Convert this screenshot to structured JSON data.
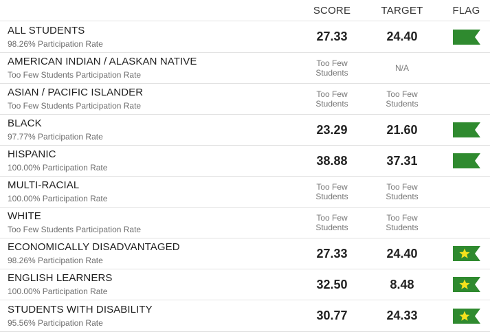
{
  "headers": {
    "score": "SCORE",
    "target": "TARGET",
    "flag": "FLAG"
  },
  "colors": {
    "flag_green": "#2f8a2f",
    "star_yellow": "#f5e11c"
  },
  "rows": [
    {
      "group": "ALL STUDENTS",
      "rate": "98.26% Participation Rate",
      "score": "27.33",
      "target": "24.40",
      "flag": "flag-icon"
    },
    {
      "group": "AMERICAN INDIAN / ALASKAN NATIVE",
      "rate": "Too Few Students Participation Rate",
      "score_line1": "Too Few",
      "score_line2": "Students",
      "target": "N/A"
    },
    {
      "group": "ASIAN / PACIFIC ISLANDER",
      "rate": "Too Few Students Participation Rate",
      "score_line1": "Too Few",
      "score_line2": "Students",
      "target_line1": "Too Few",
      "target_line2": "Students"
    },
    {
      "group": "BLACK",
      "rate": "97.77% Participation Rate",
      "score": "23.29",
      "target": "21.60",
      "flag": "flag-icon"
    },
    {
      "group": "HISPANIC",
      "rate": "100.00% Participation Rate",
      "score": "38.88",
      "target": "37.31",
      "flag": "flag-icon"
    },
    {
      "group": "MULTI-RACIAL",
      "rate": "100.00% Participation Rate",
      "score_line1": "Too Few",
      "score_line2": "Students",
      "target_line1": "Too Few",
      "target_line2": "Students"
    },
    {
      "group": "WHITE",
      "rate": "Too Few Students Participation Rate",
      "score_line1": "Too Few",
      "score_line2": "Students",
      "target_line1": "Too Few",
      "target_line2": "Students"
    },
    {
      "group": "ECONOMICALLY DISADVANTAGED",
      "rate": "98.26% Participation Rate",
      "score": "27.33",
      "target": "24.40",
      "flag": "star-flag-icon"
    },
    {
      "group": "ENGLISH LEARNERS",
      "rate": "100.00% Participation Rate",
      "score": "32.50",
      "target": "8.48",
      "flag": "star-flag-icon"
    },
    {
      "group": "STUDENTS WITH DISABILITY",
      "rate": "95.56% Participation Rate",
      "score": "30.77",
      "target": "24.33",
      "flag": "star-flag-icon"
    }
  ]
}
